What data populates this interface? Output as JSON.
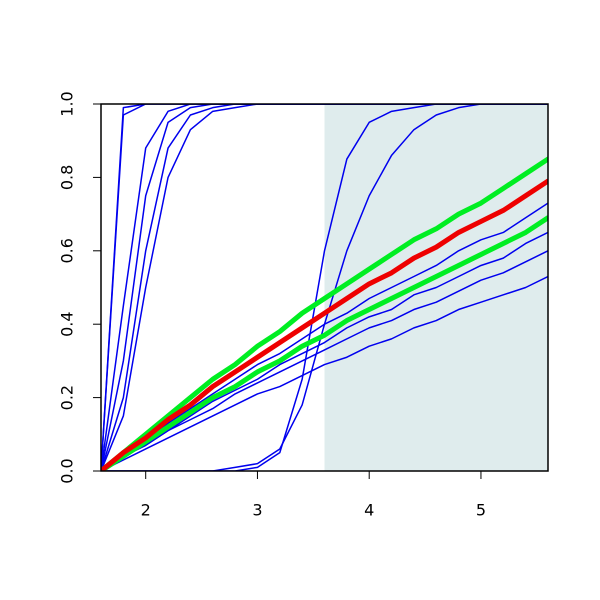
{
  "chart_data": {
    "type": "line",
    "x": [
      1.6,
      1.8,
      2.0,
      2.2,
      2.4,
      2.6,
      2.8,
      3.0,
      3.2,
      3.4,
      3.6,
      3.8,
      4.0,
      4.2,
      4.4,
      4.6,
      4.8,
      5.0,
      5.2,
      5.4,
      5.6
    ],
    "xlim": [
      1.6,
      5.6
    ],
    "ylim": [
      0,
      1
    ],
    "xticks": [
      2,
      3,
      4,
      5
    ],
    "yticks": [
      {
        "value": 0,
        "label": "0.0"
      },
      {
        "value": 0.2,
        "label": "0.2"
      },
      {
        "value": 0.4,
        "label": "0.4"
      },
      {
        "value": 0.6,
        "label": "0.6"
      },
      {
        "value": 0.8,
        "label": "0.8"
      },
      {
        "value": 1,
        "label": "1.0"
      }
    ],
    "highlight_range": [
      3.6,
      5.6
    ],
    "highlight_color": "#dfeced",
    "series": [
      {
        "color": "#0000ee",
        "width": 1.5,
        "values": [
          0,
          0.99,
          1,
          1,
          1,
          1,
          1,
          1,
          1,
          1,
          1,
          1,
          1,
          1,
          1,
          1,
          1,
          1,
          1,
          1,
          1
        ]
      },
      {
        "color": "#0000ee",
        "width": 1.5,
        "values": [
          0,
          0.97,
          1,
          1,
          1,
          1,
          1,
          1,
          1,
          1,
          1,
          1,
          1,
          1,
          1,
          1,
          1,
          1,
          1,
          1,
          1
        ]
      },
      {
        "color": "#0000ee",
        "width": 1.5,
        "values": [
          0,
          0.45,
          0.88,
          0.98,
          1,
          1,
          1,
          1,
          1,
          1,
          1,
          1,
          1,
          1,
          1,
          1,
          1,
          1,
          1,
          1,
          1
        ]
      },
      {
        "color": "#0000ee",
        "width": 1.5,
        "values": [
          0,
          0.3,
          0.75,
          0.95,
          0.99,
          1,
          1,
          1,
          1,
          1,
          1,
          1,
          1,
          1,
          1,
          1,
          1,
          1,
          1,
          1,
          1
        ]
      },
      {
        "color": "#0000ee",
        "width": 1.5,
        "values": [
          0,
          0.2,
          0.6,
          0.88,
          0.97,
          0.99,
          1,
          1,
          1,
          1,
          1,
          1,
          1,
          1,
          1,
          1,
          1,
          1,
          1,
          1,
          1
        ]
      },
      {
        "color": "#0000ee",
        "width": 1.5,
        "values": [
          0,
          0.15,
          0.5,
          0.8,
          0.93,
          0.98,
          0.99,
          1,
          1,
          1,
          1,
          1,
          1,
          1,
          1,
          1,
          1,
          1,
          1,
          1,
          1
        ]
      },
      {
        "color": "#0000ee",
        "width": 1.5,
        "values": [
          0,
          0,
          0,
          0,
          0,
          0,
          0,
          0.01,
          0.05,
          0.25,
          0.6,
          0.85,
          0.95,
          0.98,
          0.99,
          1,
          1,
          1,
          1,
          1,
          1
        ]
      },
      {
        "color": "#0000ee",
        "width": 1.5,
        "values": [
          0,
          0,
          0,
          0,
          0,
          0,
          0.01,
          0.02,
          0.06,
          0.18,
          0.4,
          0.6,
          0.75,
          0.86,
          0.93,
          0.97,
          0.99,
          1,
          1,
          1,
          1
        ]
      },
      {
        "color": "#0000ee",
        "width": 1.5,
        "values": [
          0,
          0.03,
          0.06,
          0.09,
          0.12,
          0.15,
          0.18,
          0.21,
          0.23,
          0.26,
          0.29,
          0.31,
          0.34,
          0.36,
          0.39,
          0.41,
          0.44,
          0.46,
          0.48,
          0.5,
          0.53
        ]
      },
      {
        "color": "#0000ee",
        "width": 1.5,
        "values": [
          0,
          0.04,
          0.07,
          0.11,
          0.14,
          0.17,
          0.21,
          0.24,
          0.27,
          0.3,
          0.33,
          0.36,
          0.39,
          0.41,
          0.44,
          0.46,
          0.49,
          0.52,
          0.54,
          0.57,
          0.6
        ]
      },
      {
        "color": "#0000ee",
        "width": 1.5,
        "values": [
          0,
          0.04,
          0.07,
          0.11,
          0.15,
          0.19,
          0.22,
          0.25,
          0.29,
          0.32,
          0.35,
          0.39,
          0.42,
          0.44,
          0.48,
          0.5,
          0.53,
          0.56,
          0.58,
          0.62,
          0.65
        ]
      },
      {
        "color": "#0000ee",
        "width": 1.5,
        "values": [
          0,
          0.05,
          0.08,
          0.13,
          0.17,
          0.21,
          0.25,
          0.29,
          0.32,
          0.36,
          0.4,
          0.43,
          0.47,
          0.5,
          0.53,
          0.56,
          0.6,
          0.63,
          0.65,
          0.69,
          0.73
        ]
      },
      {
        "color": "#00ee22",
        "width": 5,
        "values": [
          0,
          0.05,
          0.1,
          0.15,
          0.2,
          0.25,
          0.29,
          0.34,
          0.38,
          0.43,
          0.47,
          0.51,
          0.55,
          0.59,
          0.63,
          0.66,
          0.7,
          0.73,
          0.77,
          0.81,
          0.85
        ]
      },
      {
        "color": "#00ee22",
        "width": 5,
        "values": [
          0,
          0.04,
          0.08,
          0.12,
          0.16,
          0.2,
          0.23,
          0.27,
          0.3,
          0.34,
          0.37,
          0.41,
          0.44,
          0.47,
          0.5,
          0.53,
          0.56,
          0.59,
          0.62,
          0.65,
          0.69
        ]
      },
      {
        "color": "#ee0000",
        "width": 5,
        "values": [
          0,
          0.05,
          0.09,
          0.14,
          0.18,
          0.23,
          0.27,
          0.31,
          0.35,
          0.39,
          0.43,
          0.47,
          0.51,
          0.54,
          0.58,
          0.61,
          0.65,
          0.68,
          0.71,
          0.75,
          0.79
        ]
      }
    ]
  }
}
